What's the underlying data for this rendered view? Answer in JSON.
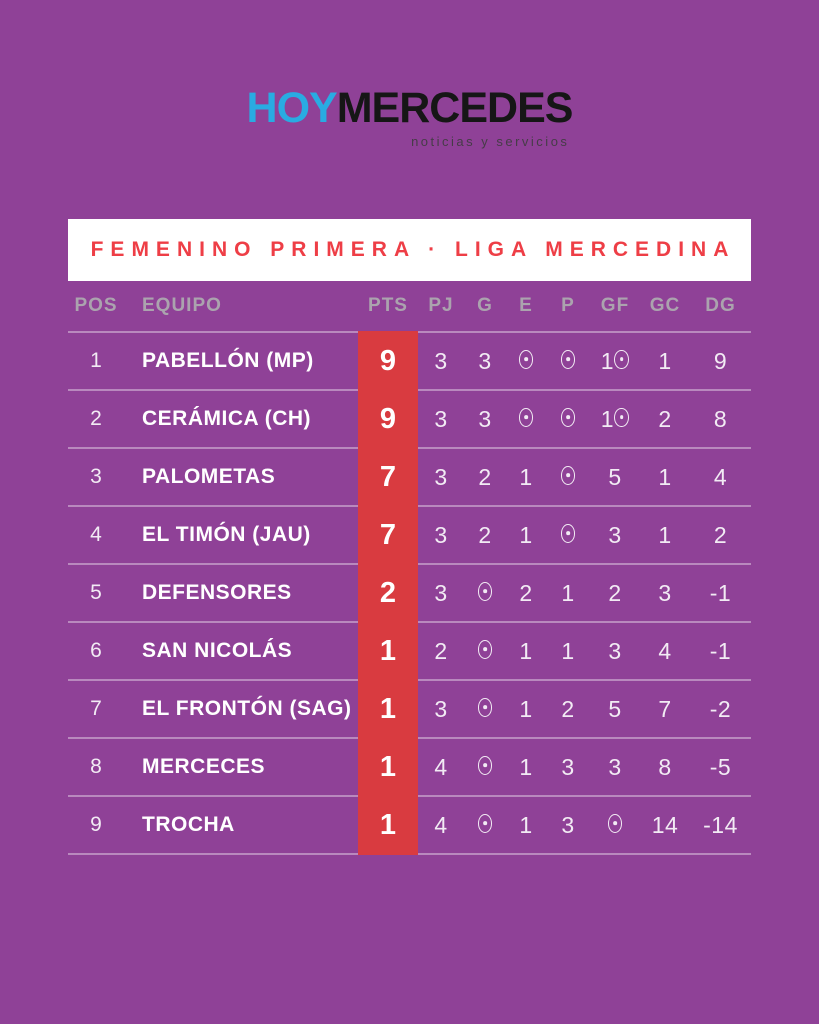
{
  "logo": {
    "part1": "HOY",
    "part2": "MERCEDES",
    "tagline": "noticias y servicios"
  },
  "chart_data": {
    "type": "table",
    "title": "FEMENINO PRIMERA · LIGA MERCEDINA",
    "columns": [
      "POS",
      "EQUIPO",
      "PTS",
      "PJ",
      "G",
      "E",
      "P",
      "GF",
      "GC",
      "DG"
    ],
    "rows": [
      {
        "pos": 1,
        "equipo": "PABELLÓN (MP)",
        "pts": 9,
        "pj": 3,
        "g": 3,
        "e": 0,
        "p": 0,
        "gf": 10,
        "gc": 1,
        "dg": 9
      },
      {
        "pos": 2,
        "equipo": "CERÁMICA (CH)",
        "pts": 9,
        "pj": 3,
        "g": 3,
        "e": 0,
        "p": 0,
        "gf": 10,
        "gc": 2,
        "dg": 8
      },
      {
        "pos": 3,
        "equipo": "PALOMETAS",
        "pts": 7,
        "pj": 3,
        "g": 2,
        "e": 1,
        "p": 0,
        "gf": 5,
        "gc": 1,
        "dg": 4
      },
      {
        "pos": 4,
        "equipo": "EL TIMÓN (JAU)",
        "pts": 7,
        "pj": 3,
        "g": 2,
        "e": 1,
        "p": 0,
        "gf": 3,
        "gc": 1,
        "dg": 2
      },
      {
        "pos": 5,
        "equipo": "DEFENSORES",
        "pts": 2,
        "pj": 3,
        "g": 0,
        "e": 2,
        "p": 1,
        "gf": 2,
        "gc": 3,
        "dg": -1
      },
      {
        "pos": 6,
        "equipo": "SAN NICOLÁS",
        "pts": 1,
        "pj": 2,
        "g": 0,
        "e": 1,
        "p": 1,
        "gf": 3,
        "gc": 4,
        "dg": -1
      },
      {
        "pos": 7,
        "equipo": "EL FRONTÓN (SAG)",
        "pts": 1,
        "pj": 3,
        "g": 0,
        "e": 1,
        "p": 2,
        "gf": 5,
        "gc": 7,
        "dg": -2
      },
      {
        "pos": 8,
        "equipo": "MERCECES",
        "pts": 1,
        "pj": 4,
        "g": 0,
        "e": 1,
        "p": 3,
        "gf": 3,
        "gc": 8,
        "dg": -5
      },
      {
        "pos": 9,
        "equipo": "TROCHA",
        "pts": 1,
        "pj": 4,
        "g": 0,
        "e": 1,
        "p": 3,
        "gf": 0,
        "gc": 14,
        "dg": -14
      }
    ]
  },
  "colors": {
    "background_purple": "#8f4197",
    "points_column_red": "#d93b40",
    "banner_text_red": "#ee3e46",
    "logo_cyan": "#29abe2",
    "logo_black": "#161616",
    "header_gray": "#aba3ae",
    "text_white": "#f2ebf4"
  }
}
